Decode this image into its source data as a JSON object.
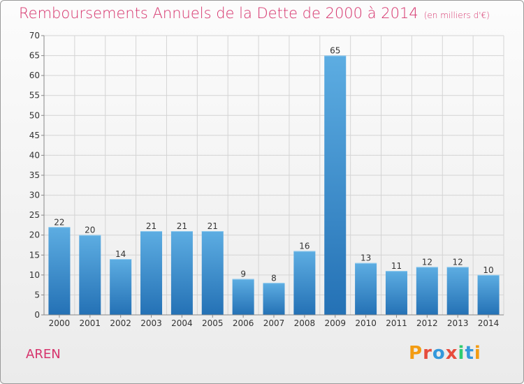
{
  "header": {
    "title": "Remboursements Annuels de la Dette de 2000 à 2014",
    "subtitle": "(en milliers d'€)"
  },
  "footer": {
    "town": "AREN",
    "logo_letters": [
      {
        "ch": "P",
        "color": "#f39c12"
      },
      {
        "ch": "r",
        "color": "#e74c3c"
      },
      {
        "ch": "o",
        "color": "#3498db"
      },
      {
        "ch": "x",
        "color": "#e74c3c"
      },
      {
        "ch": "i",
        "color": "#2ecc71"
      },
      {
        "ch": "t",
        "color": "#3498db"
      },
      {
        "ch": "i",
        "color": "#f39c12"
      }
    ]
  },
  "colors": {
    "bar_light": "#5dade2",
    "bar_dark": "#2471b5",
    "title": "#d6336c"
  },
  "chart_data": {
    "type": "bar",
    "categories": [
      "2000",
      "2001",
      "2002",
      "2003",
      "2004",
      "2005",
      "2006",
      "2007",
      "2008",
      "2009",
      "2010",
      "2011",
      "2012",
      "2013",
      "2014"
    ],
    "values": [
      22,
      20,
      14,
      21,
      21,
      21,
      9,
      8,
      16,
      65,
      13,
      11,
      12,
      12,
      10
    ],
    "ylim": [
      0,
      70
    ],
    "yticks": [
      0,
      5,
      10,
      15,
      20,
      25,
      30,
      35,
      40,
      45,
      50,
      55,
      60,
      65,
      70
    ],
    "grid": true,
    "data_labels": true
  }
}
